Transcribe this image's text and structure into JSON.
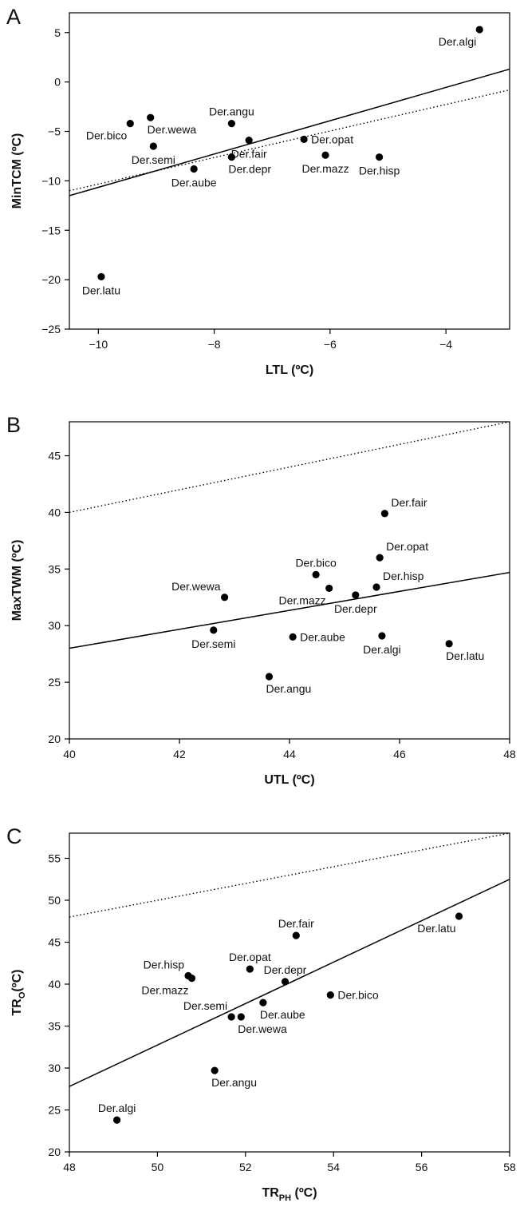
{
  "chart_data": [
    {
      "type": "scatter",
      "panel": "A",
      "xlabel": "LTL (ºC)",
      "ylabel": "MinTCM (ºC)",
      "xlim": [
        -10.5,
        -2.9
      ],
      "ylim": [
        -25,
        7
      ],
      "xticks": [
        -10,
        -8,
        -6,
        -4
      ],
      "yticks": [
        -25,
        -20,
        -15,
        -10,
        -5,
        0,
        5
      ],
      "points": [
        {
          "label": "Der.algi",
          "x": -3.42,
          "y": 5.3,
          "lpos": "below-left"
        },
        {
          "label": "Der.bico",
          "x": -9.45,
          "y": -4.2,
          "lpos": "below-left"
        },
        {
          "label": "Der.wewa",
          "x": -9.1,
          "y": -3.6,
          "lpos": "below-right"
        },
        {
          "label": "Der.angu",
          "x": -7.7,
          "y": -4.2,
          "lpos": "above"
        },
        {
          "label": "Der.semi",
          "x": -9.05,
          "y": -6.5,
          "lpos": "below"
        },
        {
          "label": "Der.fair",
          "x": -7.4,
          "y": -5.9,
          "lpos": "below"
        },
        {
          "label": "Der.depr",
          "x": -7.7,
          "y": -7.6,
          "lpos": "below-right"
        },
        {
          "label": "Der.opat",
          "x": -6.45,
          "y": -5.8,
          "lpos": "right"
        },
        {
          "label": "Der.mazz",
          "x": -6.08,
          "y": -7.4,
          "lpos": "below"
        },
        {
          "label": "Der.hisp",
          "x": -5.15,
          "y": -7.6,
          "lpos": "below"
        },
        {
          "label": "Der.aube",
          "x": -8.35,
          "y": -8.8,
          "lpos": "below"
        },
        {
          "label": "Der.latu",
          "x": -9.95,
          "y": -19.7,
          "lpos": "below"
        }
      ],
      "lines": [
        {
          "style": "solid",
          "x": [
            -10.5,
            -2.9
          ],
          "y": [
            -11.5,
            1.3
          ]
        },
        {
          "style": "dotted",
          "x": [
            -10.5,
            -2.9
          ],
          "y": [
            -11.0,
            -0.8
          ]
        }
      ]
    },
    {
      "type": "scatter",
      "panel": "B",
      "xlabel": "UTL (ºC)",
      "ylabel": "MaxTWM (ºC)",
      "xlim": [
        40,
        48
      ],
      "ylim": [
        20,
        48
      ],
      "xticks": [
        40,
        42,
        44,
        46,
        48
      ],
      "yticks": [
        20,
        25,
        30,
        35,
        40,
        45
      ],
      "points": [
        {
          "label": "Der.fair",
          "x": 45.73,
          "y": 39.9,
          "lpos": "above-right"
        },
        {
          "label": "Der.opat",
          "x": 45.64,
          "y": 36.0,
          "lpos": "above-right"
        },
        {
          "label": "Der.bico",
          "x": 44.48,
          "y": 34.5,
          "lpos": "above"
        },
        {
          "label": "Der.wewa",
          "x": 42.82,
          "y": 32.5,
          "lpos": "above-left"
        },
        {
          "label": "Der.mazz",
          "x": 44.72,
          "y": 33.3,
          "lpos": "below-left"
        },
        {
          "label": "Der.hisp",
          "x": 45.58,
          "y": 33.4,
          "lpos": "above-right"
        },
        {
          "label": "Der.depr",
          "x": 45.2,
          "y": 32.7,
          "lpos": "below"
        },
        {
          "label": "Der.semi",
          "x": 42.62,
          "y": 29.6,
          "lpos": "below"
        },
        {
          "label": "Der.aube",
          "x": 44.06,
          "y": 29.0,
          "lpos": "right"
        },
        {
          "label": "Der.algi",
          "x": 45.68,
          "y": 29.1,
          "lpos": "below"
        },
        {
          "label": "Der.latu",
          "x": 46.9,
          "y": 28.4,
          "lpos": "below-right"
        },
        {
          "label": "Der.angu",
          "x": 43.63,
          "y": 25.5,
          "lpos": "below-right"
        }
      ],
      "lines": [
        {
          "style": "solid",
          "x": [
            40,
            48
          ],
          "y": [
            28.0,
            34.7
          ]
        },
        {
          "style": "dotted",
          "x": [
            40,
            48
          ],
          "y": [
            40.0,
            48.0
          ]
        }
      ]
    },
    {
      "type": "scatter",
      "panel": "C",
      "xlabel": "TR",
      "xlabel_sub": "PH",
      "xlabel_unit": " (ºC)",
      "ylabel": "TR",
      "ylabel_sub": "O",
      "ylabel_unit": "(ºC)",
      "xlim": [
        48,
        58
      ],
      "ylim": [
        20,
        58
      ],
      "xticks": [
        48,
        50,
        52,
        54,
        56,
        58
      ],
      "yticks": [
        20,
        25,
        30,
        35,
        40,
        45,
        50,
        55
      ],
      "points": [
        {
          "label": "Der.latu",
          "x": 56.85,
          "y": 48.1,
          "lpos": "below-left"
        },
        {
          "label": "Der.fair",
          "x": 53.15,
          "y": 45.8,
          "lpos": "above"
        },
        {
          "label": "Der.hisp",
          "x": 50.7,
          "y": 41.0,
          "lpos": "above-left"
        },
        {
          "label": "Der.mazz",
          "x": 50.78,
          "y": 40.7,
          "lpos": "below-left"
        },
        {
          "label": "Der.opat",
          "x": 52.1,
          "y": 41.8,
          "lpos": "above"
        },
        {
          "label": "Der.depr",
          "x": 52.9,
          "y": 40.3,
          "lpos": "above"
        },
        {
          "label": "Der.bico",
          "x": 53.93,
          "y": 38.7,
          "lpos": "right"
        },
        {
          "label": "Der.aube",
          "x": 52.4,
          "y": 37.8,
          "lpos": "below-right"
        },
        {
          "label": "Der.semi",
          "x": 51.68,
          "y": 36.1,
          "lpos": "above-left"
        },
        {
          "label": "Der.wewa",
          "x": 51.9,
          "y": 36.1,
          "lpos": "below-right"
        },
        {
          "label": "Der.angu",
          "x": 51.3,
          "y": 29.7,
          "lpos": "below-right"
        },
        {
          "label": "Der.algi",
          "x": 49.08,
          "y": 23.8,
          "lpos": "above"
        }
      ],
      "lines": [
        {
          "style": "solid",
          "x": [
            48,
            58
          ],
          "y": [
            27.8,
            52.5
          ]
        },
        {
          "style": "dotted",
          "x": [
            48,
            58
          ],
          "y": [
            48.0,
            58.0
          ]
        }
      ]
    }
  ]
}
